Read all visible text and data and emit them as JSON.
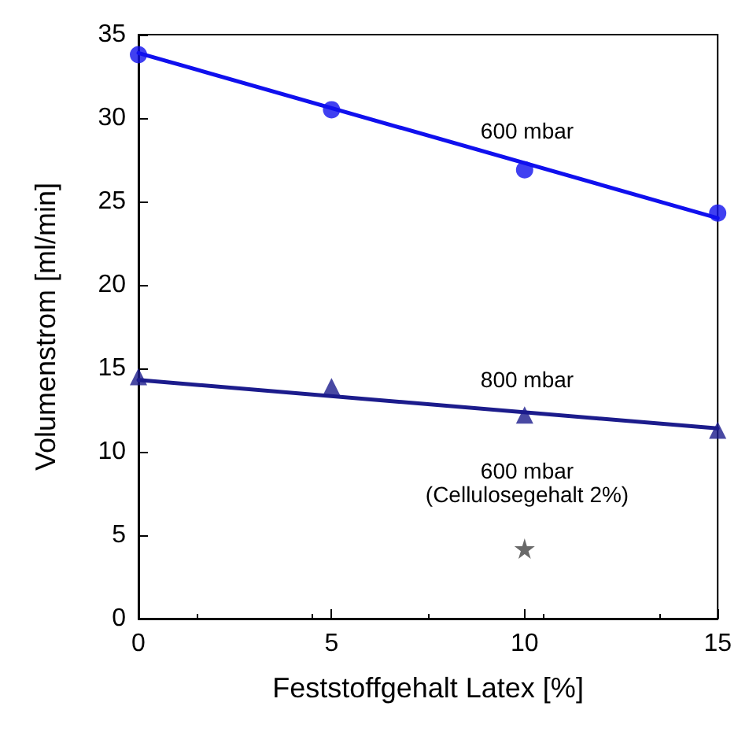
{
  "chart_data": {
    "type": "scatter",
    "xlabel": "Feststoffgehalt Latex [%]",
    "ylabel": "Volumenstrom [ml/min]",
    "xlim": [
      0,
      15
    ],
    "xticks": [
      0,
      5,
      10,
      15
    ],
    "ylim": [
      0,
      35
    ],
    "yticks": [
      0,
      5,
      10,
      15,
      20,
      25,
      30,
      35
    ],
    "grid": false,
    "series": [
      {
        "marker": "circle",
        "color": "#1010ee",
        "x": [
          0,
          5,
          10,
          15
        ],
        "values": [
          33.8,
          30.5,
          26.9,
          24.3
        ]
      },
      {
        "type": "line",
        "marker": "none",
        "color": "#1010ee",
        "x": [
          0,
          15
        ],
        "values": [
          33.9,
          24
        ]
      },
      {
        "marker": "triangle",
        "color": "#1c1c8c",
        "x": [
          0,
          5,
          10,
          15
        ],
        "values": [
          14.5,
          13.9,
          12.2,
          11.3
        ]
      },
      {
        "type": "line",
        "marker": "none",
        "color": "#1c1c8c",
        "x": [
          0,
          15
        ],
        "values": [
          14.3,
          11.4
        ]
      },
      {
        "marker": "star",
        "color": "#444444",
        "x": [
          10
        ],
        "values": [
          4.2
        ]
      }
    ],
    "annotations": [
      "600 mbar",
      "800 mbar",
      "600 mbar",
      "(Cellulosegehalt 2%)"
    ]
  }
}
